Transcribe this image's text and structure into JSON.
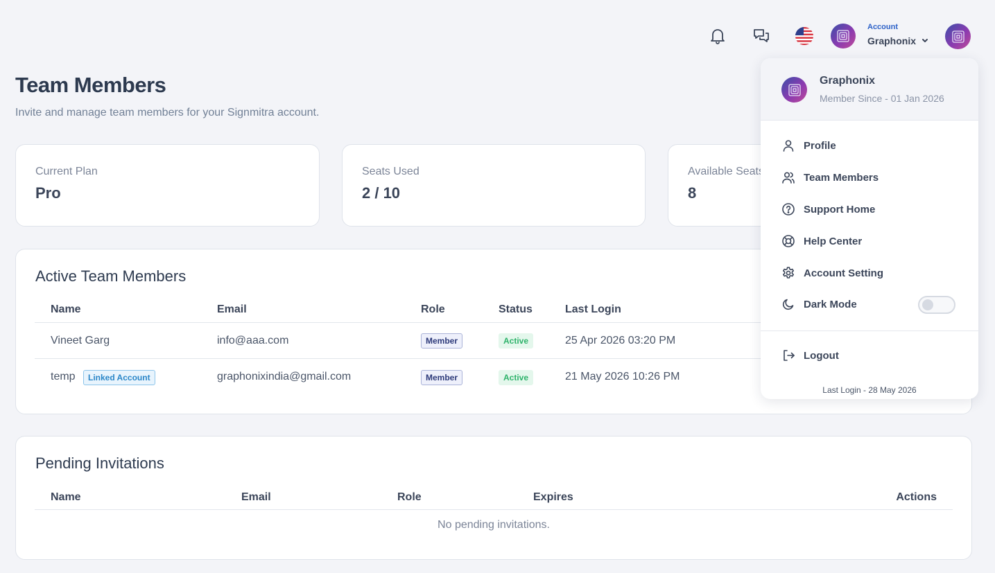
{
  "header": {
    "account_label": "Account",
    "account_name": "Graphonix",
    "icons": [
      "bell-icon",
      "chat-icon",
      "us-flag-icon",
      "avatar",
      "chevron-down-icon"
    ]
  },
  "page": {
    "title": "Team Members",
    "subtitle": "Invite and manage team members for your Signmitra account."
  },
  "stats": [
    {
      "label": "Current Plan",
      "value": "Pro"
    },
    {
      "label": "Seats Used",
      "value": "2 / 10"
    },
    {
      "label": "Available Seats",
      "value": "8"
    }
  ],
  "active_members": {
    "title": "Active Team Members",
    "columns": [
      "Name",
      "Email",
      "Role",
      "Status",
      "Last Login"
    ],
    "rows": [
      {
        "name": "Vineet Garg",
        "tag": "",
        "email": "info@aaa.com",
        "role": "Member",
        "status": "Active",
        "last_login": "25 Apr 2026 03:20 PM"
      },
      {
        "name": "temp",
        "tag": "Linked Account",
        "email": "graphonixindia@gmail.com",
        "role": "Member",
        "status": "Active",
        "last_login": "21 May 2026 10:26 PM"
      }
    ]
  },
  "pending": {
    "title": "Pending Invitations",
    "columns": [
      "Name",
      "Email",
      "Role",
      "Expires",
      "Actions"
    ],
    "empty_text": "No pending invitations."
  },
  "dropdown": {
    "name": "Graphonix",
    "member_since": "Member Since - 01 Jan 2026",
    "items": [
      {
        "label": "Profile",
        "icon": "user-icon"
      },
      {
        "label": "Team Members",
        "icon": "users-icon"
      },
      {
        "label": "Support Home",
        "icon": "question-circle-icon"
      },
      {
        "label": "Help Center",
        "icon": "lifebuoy-icon"
      },
      {
        "label": "Account Setting",
        "icon": "gear-icon"
      },
      {
        "label": "Dark Mode",
        "icon": "moon-icon"
      }
    ],
    "dark_mode_on": false,
    "logout_label": "Logout",
    "last_login": "Last Login - 28 May 2026"
  },
  "colors": {
    "background": "#f3f4f8",
    "accent": "#2e62c8",
    "active_green": "#2fb36b",
    "avatar_gradient": [
      "#3a4fa8",
      "#c04a98"
    ]
  }
}
